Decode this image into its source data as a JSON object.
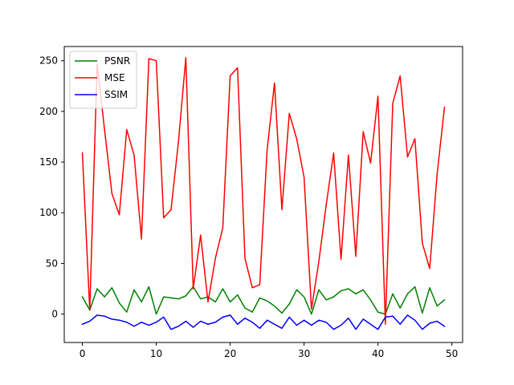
{
  "chart_data": {
    "type": "line",
    "title": "",
    "xlabel": "",
    "ylabel": "",
    "xlim": [
      -2.45,
      51.45
    ],
    "ylim": [
      -28,
      264
    ],
    "xticks": [
      0,
      10,
      20,
      30,
      40,
      50
    ],
    "yticks": [
      0,
      50,
      100,
      150,
      200,
      250
    ],
    "grid": false,
    "legend": "top-left",
    "x": [
      0,
      1,
      2,
      3,
      4,
      5,
      6,
      7,
      8,
      9,
      10,
      11,
      12,
      13,
      14,
      15,
      16,
      17,
      18,
      19,
      20,
      21,
      22,
      23,
      24,
      25,
      26,
      27,
      28,
      29,
      30,
      31,
      32,
      33,
      34,
      35,
      36,
      37,
      38,
      39,
      40,
      41,
      42,
      43,
      44,
      45,
      46,
      47,
      48,
      49
    ],
    "series": [
      {
        "name": "PSNR",
        "color": "#008000",
        "values": [
          17,
          4,
          25,
          17,
          26,
          11,
          2,
          24,
          12,
          27,
          0,
          17,
          16,
          15,
          18,
          27,
          15,
          17,
          12,
          25,
          12,
          19,
          6,
          2,
          16,
          13,
          8,
          1,
          10,
          24,
          17,
          0,
          24,
          14,
          17,
          23,
          25,
          20,
          24,
          14,
          2,
          0,
          20,
          6,
          20,
          27,
          1,
          26,
          8,
          14
        ]
      },
      {
        "name": "MSE",
        "color": "#ff0000",
        "values": [
          159,
          4,
          247,
          182,
          119,
          98,
          182,
          157,
          74,
          252,
          250,
          95,
          103,
          170,
          253,
          25,
          78,
          12,
          55,
          85,
          235,
          243,
          55,
          26,
          29,
          162,
          228,
          103,
          198,
          173,
          135,
          5,
          52,
          108,
          159,
          54,
          157,
          57,
          180,
          149,
          215,
          -10,
          208,
          235,
          155,
          173,
          70,
          45,
          138,
          204
        ]
      },
      {
        "name": "SSIM",
        "color": "#0000ff",
        "values": [
          -10,
          -7,
          -1,
          -2,
          -5,
          -6,
          -8,
          -12,
          -8,
          -11,
          -8,
          -3,
          -15,
          -12,
          -7,
          -13,
          -7,
          -10,
          -8,
          -3,
          -1,
          -10,
          -4,
          -8,
          -14,
          -6,
          -10,
          -14,
          -3,
          -11,
          -6,
          -11,
          -6,
          -8,
          -15,
          -11,
          -4,
          -15,
          -5,
          -10,
          -15,
          -3,
          -2,
          -10,
          -1,
          -6,
          -15,
          -9,
          -7,
          -12
        ]
      }
    ]
  }
}
